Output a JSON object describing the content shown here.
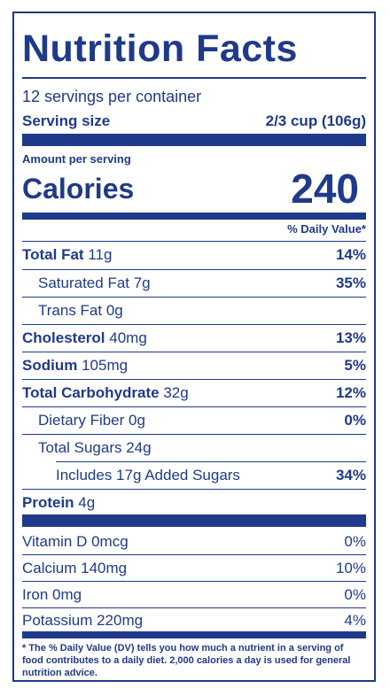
{
  "title": "Nutrition Facts",
  "servings_per_container": "12 servings per container",
  "serving_size_label": "Serving size",
  "serving_size_value": "2/3 cup (106g)",
  "amount_per_serving": "Amount per serving",
  "calories_label": "Calories",
  "calories_value": "240",
  "daily_value_header": "% Daily Value*",
  "nutrients": {
    "total_fat": {
      "label": "Total Fat",
      "amount": "11g",
      "dv": "14%"
    },
    "saturated_fat": {
      "label": "Saturated Fat 7g",
      "dv": "35%"
    },
    "trans_fat": {
      "label": "Trans Fat 0g"
    },
    "cholesterol": {
      "label": "Cholesterol",
      "amount": "40mg",
      "dv": "13%"
    },
    "sodium": {
      "label": "Sodium",
      "amount": "105mg",
      "dv": "5%"
    },
    "total_carbohydrate": {
      "label": "Total Carbohydrate",
      "amount": "32g",
      "dv": "12%"
    },
    "dietary_fiber": {
      "label": "Dietary Fiber 0g",
      "dv": "0%"
    },
    "total_sugars": {
      "label": "Total Sugars 24g"
    },
    "added_sugars": {
      "label": "Includes 17g Added Sugars",
      "dv": "34%"
    },
    "protein": {
      "label": "Protein",
      "amount": "4g"
    }
  },
  "vitamins": [
    {
      "label": "Vitamin D 0mcg",
      "dv": "0%"
    },
    {
      "label": "Calcium 140mg",
      "dv": "10%"
    },
    {
      "label": "Iron 0mg",
      "dv": "0%"
    },
    {
      "label": "Potassium 220mg",
      "dv": "4%"
    }
  ],
  "footnote": "* The % Daily Value (DV) tells you how much a nutrient in a serving of food contributes to a daily diet. 2,000 calories a day is used for general nutrition advice.",
  "colors": {
    "ink": "#1f3a8a",
    "background": "#ffffff"
  }
}
